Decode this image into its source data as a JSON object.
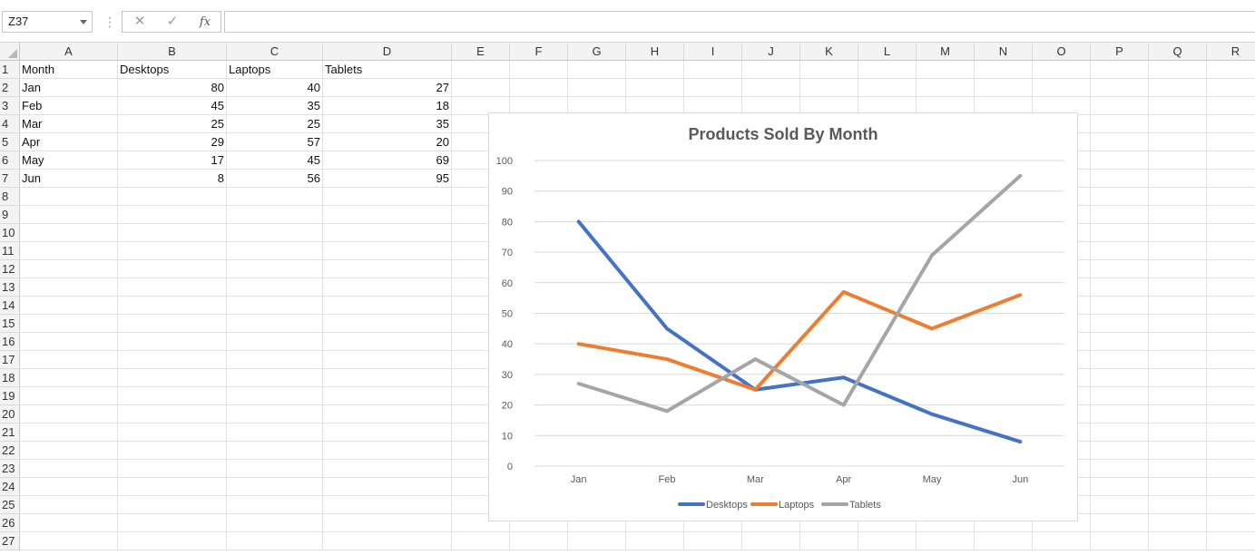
{
  "formula_bar": {
    "name_box": "Z37",
    "cancel_icon": "x-icon",
    "enter_icon": "check-icon",
    "fx_label": "fx",
    "formula_value": ""
  },
  "columns": [
    "A",
    "B",
    "C",
    "D",
    "E",
    "F",
    "G",
    "H",
    "I",
    "J",
    "K",
    "L",
    "M",
    "N",
    "O",
    "P",
    "Q",
    "R"
  ],
  "rows": [
    "1",
    "2",
    "3",
    "4",
    "5",
    "6",
    "7",
    "8",
    "9",
    "10",
    "11",
    "12",
    "13",
    "14",
    "15",
    "16",
    "17",
    "18",
    "19",
    "20",
    "21",
    "22",
    "23",
    "24",
    "25",
    "26",
    "27"
  ],
  "sheet": {
    "header": [
      "Month",
      "Desktops",
      "Laptops",
      "Tablets"
    ],
    "data": [
      [
        "Jan",
        "80",
        "40",
        "27"
      ],
      [
        "Feb",
        "45",
        "35",
        "18"
      ],
      [
        "Mar",
        "25",
        "25",
        "35"
      ],
      [
        "Apr",
        "29",
        "57",
        "20"
      ],
      [
        "May",
        "17",
        "45",
        "69"
      ],
      [
        "Jun",
        "8",
        "56",
        "95"
      ]
    ]
  },
  "chart_data": {
    "type": "line",
    "title": "Products Sold By Month",
    "categories": [
      "Jan",
      "Feb",
      "Mar",
      "Apr",
      "May",
      "Jun"
    ],
    "series": [
      {
        "name": "Desktops",
        "values": [
          80,
          45,
          25,
          29,
          17,
          8
        ],
        "color": "#4472c4"
      },
      {
        "name": "Laptops",
        "values": [
          40,
          35,
          25,
          57,
          45,
          56
        ],
        "color": "#ed7d31"
      },
      {
        "name": "Tablets",
        "values": [
          27,
          18,
          35,
          20,
          69,
          95
        ],
        "color": "#a5a5a5"
      }
    ],
    "y_ticks": [
      "0",
      "10",
      "20",
      "30",
      "40",
      "50",
      "60",
      "70",
      "80",
      "90",
      "100"
    ],
    "ylim": [
      0,
      100
    ],
    "xlabel": "",
    "ylabel": "",
    "grid": true,
    "legend": "bottom"
  }
}
